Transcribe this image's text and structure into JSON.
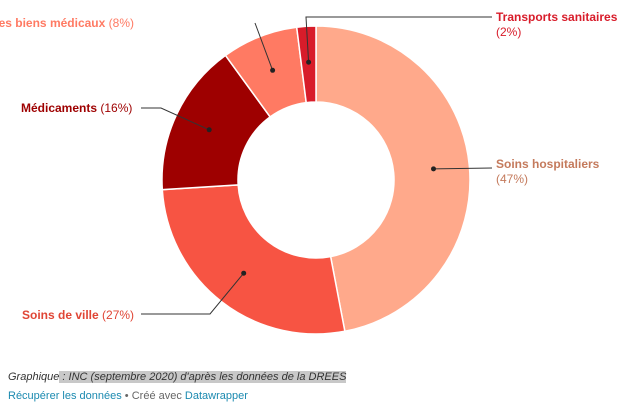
{
  "chart_data": {
    "type": "pie",
    "slices": [
      {
        "name": "Soins hospitaliers",
        "value": 47,
        "pct_label": "(47%)",
        "color": "#ffa98b",
        "label_color": "#c47a5c"
      },
      {
        "name": "Soins de ville",
        "value": 27,
        "pct_label": "(27%)",
        "color": "#f75443",
        "label_color": "#e04535"
      },
      {
        "name": "Médicaments",
        "value": 16,
        "pct_label": "(16%)",
        "color": "#9e0000",
        "label_color": "#9e0000"
      },
      {
        "name": "Autres biens médicaux",
        "value": 8,
        "pct_label": "(8%)",
        "color": "#ff7a63",
        "label_color": "#ff7a63"
      },
      {
        "name": "Transports sanitaires",
        "value": 2,
        "pct_label": "(2%)",
        "color": "#d81c2a",
        "label_color": "#d81c2a"
      }
    ]
  },
  "footer": {
    "source_prefix": "Graphique",
    "source_text": " : INC (septembre 2020) d'après les données de la DREES",
    "get_data": "Récupérer les données",
    "created_with": " • Créé avec ",
    "tool": "Datawrapper"
  }
}
